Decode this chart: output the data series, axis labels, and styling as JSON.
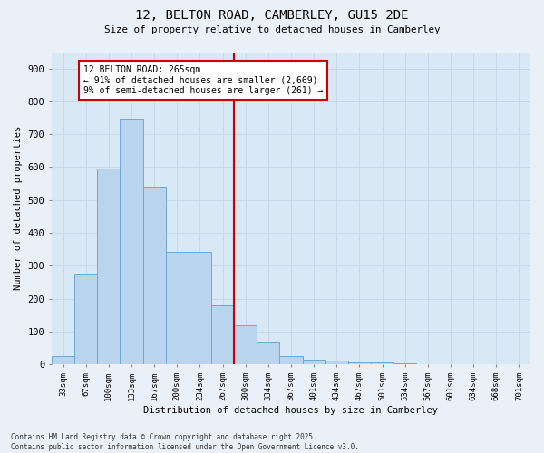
{
  "title_line1": "12, BELTON ROAD, CAMBERLEY, GU15 2DE",
  "title_line2": "Size of property relative to detached houses in Camberley",
  "xlabel": "Distribution of detached houses by size in Camberley",
  "ylabel": "Number of detached properties",
  "categories": [
    "33sqm",
    "67sqm",
    "100sqm",
    "133sqm",
    "167sqm",
    "200sqm",
    "234sqm",
    "267sqm",
    "300sqm",
    "334sqm",
    "367sqm",
    "401sqm",
    "434sqm",
    "467sqm",
    "501sqm",
    "534sqm",
    "567sqm",
    "601sqm",
    "634sqm",
    "668sqm",
    "701sqm"
  ],
  "values": [
    25,
    275,
    597,
    748,
    540,
    342,
    342,
    180,
    118,
    65,
    25,
    13,
    12,
    5,
    5,
    3,
    1,
    1,
    0,
    0,
    1
  ],
  "bar_color": "#bad4ed",
  "bar_edge_color": "#6aaad4",
  "vline_color": "#cc0000",
  "annotation_title": "12 BELTON ROAD: 265sqm",
  "annotation_line2": "← 91% of detached houses are smaller (2,669)",
  "annotation_line3": "9% of semi-detached houses are larger (261) →",
  "annotation_box_color": "#cc0000",
  "annotation_bg_color": "#ffffff",
  "ylim": [
    0,
    950
  ],
  "yticks": [
    0,
    100,
    200,
    300,
    400,
    500,
    600,
    700,
    800,
    900
  ],
  "grid_color": "#c8d8e8",
  "bg_color": "#d8e8f4",
  "fig_bg_color": "#eaf0f8",
  "footer_line1": "Contains HM Land Registry data © Crown copyright and database right 2025.",
  "footer_line2": "Contains public sector information licensed under the Open Government Licence v3.0."
}
